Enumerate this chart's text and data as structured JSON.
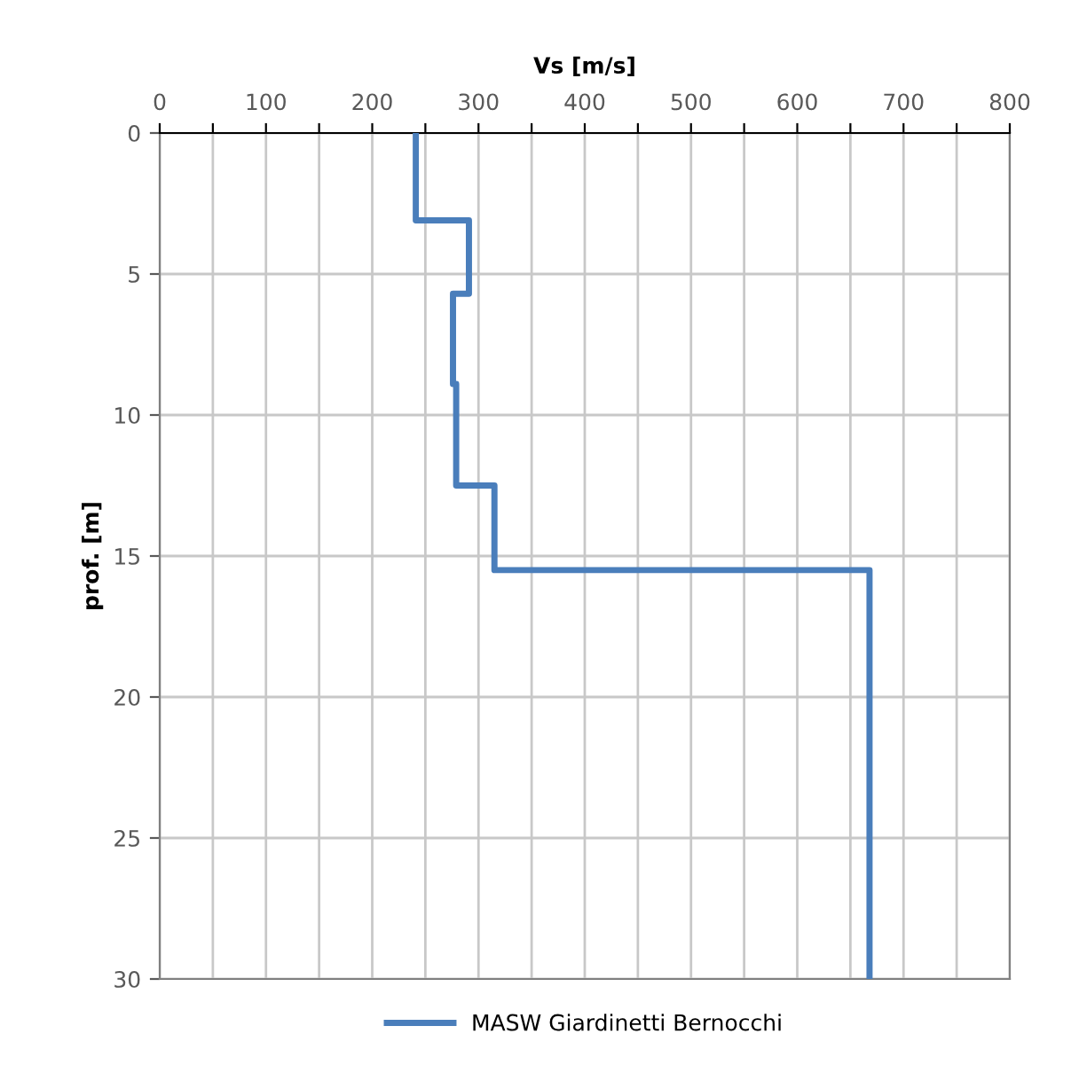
{
  "chart_data": {
    "type": "line",
    "xlabel": "Vs [m/s]",
    "ylabel": "prof. [m]",
    "xlim": [
      0,
      800
    ],
    "xticks": [
      0,
      {
        "value": 50,
        "label": null
      },
      100,
      {
        "value": 150,
        "label": null
      },
      200,
      {
        "value": 250,
        "label": null
      },
      300,
      {
        "value": 350,
        "label": null
      },
      400,
      {
        "value": 450,
        "label": null
      },
      500,
      {
        "value": 550,
        "label": null
      },
      600,
      {
        "value": 650,
        "label": null
      },
      700,
      {
        "value": 750,
        "label": null
      },
      800
    ],
    "ylim": [
      30,
      0
    ],
    "yticks": [
      0,
      5,
      10,
      15,
      20,
      25,
      30
    ],
    "grid": true,
    "legend": "bottom",
    "marker": "none",
    "line_style": "solid",
    "series": [
      {
        "name": "MASW Giardinetti Bernocchi",
        "color": "#4a7ebb",
        "x": [
          241,
          241,
          291,
          291,
          276,
          276,
          279,
          279,
          315,
          315,
          668,
          668
        ],
        "values": [
          0,
          3.1,
          3.1,
          5.7,
          5.7,
          8.9,
          8.9,
          12.5,
          12.5,
          15.5,
          15.5,
          30
        ]
      }
    ]
  }
}
